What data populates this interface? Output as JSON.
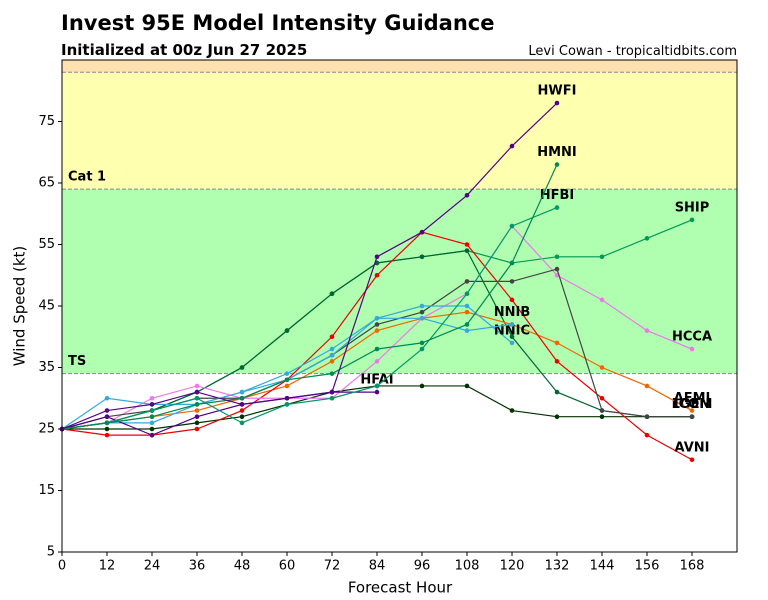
{
  "chart_data": {
    "type": "line",
    "title": "Invest 95E Model Intensity Guidance",
    "subtitle": "Initialized at 00z Jun 27 2025",
    "credit": "Levi Cowan - tropicaltidbits.com",
    "xlabel": "Forecast Hour",
    "ylabel": "Wind Speed (kt)",
    "xlim": [
      0,
      180
    ],
    "ylim": [
      5,
      85
    ],
    "xticks": [
      0,
      12,
      24,
      36,
      48,
      60,
      72,
      84,
      96,
      108,
      120,
      132,
      144,
      156,
      168
    ],
    "yticks": [
      5,
      15,
      25,
      35,
      45,
      55,
      65,
      75
    ],
    "bands": [
      {
        "label": "TS",
        "from": 34,
        "to": 64,
        "color": "#b0ffb0",
        "label_color": "#3a9a3a"
      },
      {
        "label": "Cat 1",
        "from": 64,
        "to": 83,
        "color": "#ffffb0",
        "label_color": "#b0a030"
      },
      {
        "from": 83,
        "to": 85,
        "color": "#ffe0b0"
      }
    ],
    "x": [
      0,
      12,
      24,
      36,
      48,
      60,
      72,
      84,
      96,
      108,
      120,
      132,
      144,
      156,
      168
    ],
    "series": [
      {
        "name": "SHIP",
        "color": "#009955",
        "values": [
          25,
          26,
          28,
          31,
          35,
          41,
          47,
          52,
          53,
          54,
          52,
          53,
          53,
          56,
          59
        ]
      },
      {
        "name": "DSHP",
        "color": "#006633",
        "values": [
          25,
          26,
          28,
          31,
          35,
          41,
          47,
          52,
          53,
          54,
          40,
          31,
          28,
          27,
          27
        ]
      },
      {
        "name": "LGEM",
        "color": "#003300",
        "values": [
          25,
          25,
          25,
          26,
          27,
          29,
          31,
          32,
          32,
          32,
          28,
          27,
          27,
          27,
          27
        ]
      },
      {
        "name": "AEMI",
        "color": "#ee6600",
        "values": [
          25,
          26,
          27,
          28,
          30,
          32,
          36,
          41,
          43,
          44,
          42,
          39,
          35,
          32,
          28
        ]
      },
      {
        "name": "AVNI",
        "color": "#ee0000",
        "values": [
          25,
          24,
          24,
          25,
          28,
          33,
          40,
          50,
          57,
          55,
          46,
          36,
          30,
          24,
          20
        ]
      },
      {
        "name": "HCCA",
        "color": "#ee77ee",
        "values": [
          25,
          26,
          30,
          32,
          30,
          30,
          30,
          36,
          43,
          47,
          58,
          50,
          46,
          41,
          38
        ]
      },
      {
        "name": "ICON",
        "color": "#444444",
        "values": [
          25,
          27,
          28,
          30,
          30,
          33,
          37,
          42,
          44,
          49,
          49,
          51,
          28,
          27,
          27
        ]
      },
      {
        "name": "NNIC",
        "color": "#33aadd",
        "values": [
          25,
          30,
          29,
          29,
          31,
          34,
          38,
          43,
          45,
          45,
          39,
          null,
          null,
          null,
          null
        ]
      },
      {
        "name": "NNIB",
        "color": "#33aadd",
        "values": [
          25,
          26,
          26,
          29,
          31,
          33,
          37,
          43,
          43,
          41,
          42,
          null,
          null,
          null,
          null
        ]
      },
      {
        "name": "HFAI",
        "color": "#550088",
        "values": [
          25,
          27,
          24,
          27,
          29,
          30,
          31,
          31,
          null,
          null,
          null,
          null,
          null,
          null,
          null
        ]
      },
      {
        "name": "HFBI",
        "color": "#009966",
        "values": [
          25,
          26,
          28,
          30,
          26,
          29,
          30,
          32,
          38,
          47,
          58,
          61,
          null,
          null,
          null
        ]
      },
      {
        "name": "HMNI",
        "color": "#008855",
        "values": [
          25,
          26,
          27,
          29,
          30,
          33,
          34,
          38,
          39,
          42,
          52,
          68,
          null,
          null,
          null
        ]
      },
      {
        "name": "HWFI",
        "color": "#550088",
        "values": [
          25,
          28,
          29,
          31,
          29,
          30,
          31,
          53,
          57,
          63,
          71,
          78,
          null,
          null,
          null
        ]
      }
    ]
  }
}
